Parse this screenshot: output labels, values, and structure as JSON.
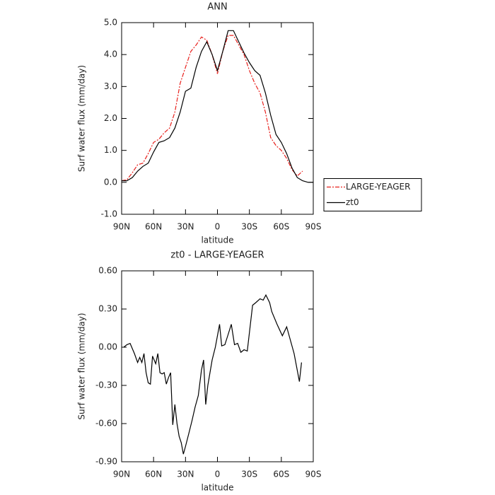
{
  "chart_data": [
    {
      "type": "line",
      "title": "ANN",
      "xlabel": "latitude",
      "ylabel": "Surf water flux (mm/day)",
      "x": [
        90,
        85,
        80,
        75,
        70,
        65,
        60,
        55,
        50,
        45,
        40,
        35,
        30,
        25,
        20,
        15,
        10,
        5,
        0,
        -5,
        -10,
        -15,
        -20,
        -25,
        -30,
        -35,
        -40,
        -45,
        -50,
        -55,
        -60,
        -65,
        -70,
        -75,
        -80,
        -85,
        -90
      ],
      "series": [
        {
          "name": "LARGE-YEAGER",
          "color": "#e8201c",
          "line_style": "dashed",
          "values": [
            0.05,
            0.08,
            0.3,
            0.55,
            0.6,
            0.9,
            1.25,
            1.35,
            1.55,
            1.7,
            2.2,
            3.1,
            3.6,
            4.1,
            4.3,
            4.55,
            4.45,
            4.0,
            3.4,
            4.1,
            4.6,
            4.6,
            4.3,
            4.0,
            3.5,
            3.1,
            2.8,
            2.2,
            1.4,
            1.15,
            1.0,
            0.75,
            0.4,
            0.2,
            0.35,
            null,
            null
          ]
        },
        {
          "name": "zt0",
          "color": "#000000",
          "line_style": "solid",
          "values": [
            0.05,
            0.05,
            0.15,
            0.35,
            0.5,
            0.6,
            0.95,
            1.25,
            1.3,
            1.4,
            1.7,
            2.2,
            2.85,
            2.95,
            3.6,
            4.1,
            4.4,
            4.0,
            3.5,
            4.1,
            4.75,
            4.75,
            4.4,
            4.05,
            3.75,
            3.5,
            3.35,
            2.8,
            2.1,
            1.5,
            1.25,
            0.9,
            0.45,
            0.15,
            0.05,
            0.0,
            0.0
          ]
        }
      ],
      "xlim": [
        90,
        -90
      ],
      "xticks": [
        {
          "value": 90,
          "label": "90N"
        },
        {
          "value": 60,
          "label": "60N"
        },
        {
          "value": 30,
          "label": "30N"
        },
        0,
        {
          "value": -30,
          "label": "30S"
        },
        {
          "value": -60,
          "label": "60S"
        },
        {
          "value": -90,
          "label": "90S"
        }
      ],
      "ylim": [
        -1,
        5
      ],
      "yticks": [
        {
          "value": -1,
          "label": "-1.0"
        },
        {
          "value": 0,
          "label": "0.0"
        },
        {
          "value": 1,
          "label": "1.0"
        },
        {
          "value": 2,
          "label": "2.0"
        },
        {
          "value": 3,
          "label": "3.0"
        },
        {
          "value": 4,
          "label": "4.0"
        },
        {
          "value": 5,
          "label": "5.0"
        }
      ],
      "legend": "right",
      "grid": false
    },
    {
      "type": "line",
      "title": "zt0 - LARGE-YEAGER",
      "xlabel": "latitude",
      "ylabel": "Surf water flux (mm/day)",
      "x": [
        88,
        85,
        82,
        78,
        75,
        73,
        71,
        69,
        67,
        65,
        63,
        61,
        58,
        56,
        54,
        52,
        50,
        48,
        46,
        44,
        42,
        40,
        38,
        36,
        34,
        32,
        30,
        27,
        24,
        21,
        18,
        15,
        13,
        11,
        9,
        5,
        2,
        -2,
        -4,
        -7,
        -10,
        -13,
        -16,
        -19,
        -22,
        -25,
        -28,
        -33,
        -36,
        -40,
        -43,
        -45.5,
        -49,
        -51,
        -56,
        -61,
        -65,
        -68,
        -72,
        -77,
        -79
      ],
      "series": [
        {
          "name": null,
          "color": "#000000",
          "line_style": "solid",
          "values": [
            0.0,
            0.02,
            0.03,
            -0.05,
            -0.12,
            -0.08,
            -0.12,
            -0.05,
            -0.2,
            -0.28,
            -0.29,
            -0.07,
            -0.13,
            -0.05,
            -0.2,
            -0.21,
            -0.2,
            -0.29,
            -0.24,
            -0.2,
            -0.61,
            -0.45,
            -0.6,
            -0.7,
            -0.75,
            -0.84,
            -0.78,
            -0.68,
            -0.58,
            -0.47,
            -0.38,
            -0.18,
            -0.1,
            -0.45,
            -0.3,
            -0.1,
            0.0,
            0.18,
            0.01,
            0.02,
            0.1,
            0.18,
            0.02,
            0.03,
            -0.04,
            -0.02,
            -0.03,
            0.33,
            0.35,
            0.38,
            0.37,
            0.41,
            0.35,
            0.28,
            0.18,
            0.09,
            0.16,
            0.07,
            -0.05,
            -0.27,
            -0.12
          ]
        }
      ],
      "xlim": [
        90,
        -90
      ],
      "xticks": [
        {
          "value": 90,
          "label": "90N"
        },
        {
          "value": 60,
          "label": "60N"
        },
        {
          "value": 30,
          "label": "30N"
        },
        0,
        {
          "value": -30,
          "label": "30S"
        },
        {
          "value": -60,
          "label": "60S"
        },
        {
          "value": -90,
          "label": "90S"
        }
      ],
      "ylim": [
        -0.9,
        0.6
      ],
      "yticks": [
        {
          "value": -0.9,
          "label": "-0.90"
        },
        {
          "value": -0.6,
          "label": "-0.60"
        },
        {
          "value": -0.3,
          "label": "-0.30"
        },
        {
          "value": 0,
          "label": "0.00"
        },
        {
          "value": 0.3,
          "label": "0.30"
        },
        {
          "value": 0.6,
          "label": "0.60"
        }
      ],
      "grid": false
    }
  ]
}
